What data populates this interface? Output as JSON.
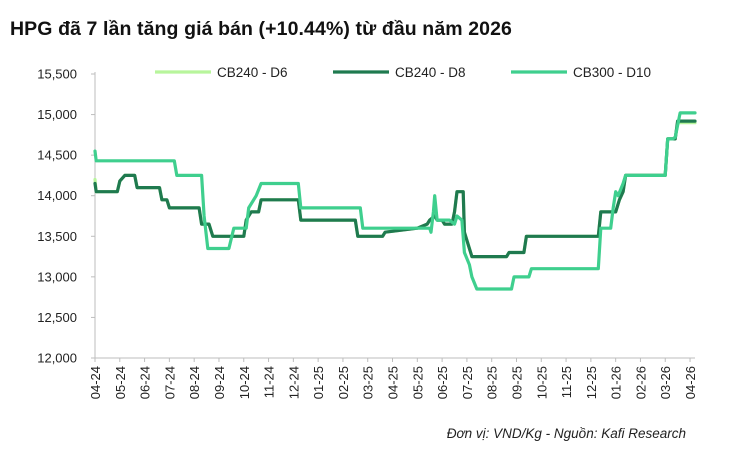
{
  "title": "HPG đã 7 lần tăng giá bán (+10.44%) từ đầu năm 2026",
  "footer": "Đơn vị: VND/Kg - Nguồn: Kafi Research",
  "colors": {
    "cb240_d6": "#b8f59c",
    "cb240_d8": "#1f7a4f",
    "cb300_d10": "#3fcf8e",
    "axis": "#bdbdbd",
    "text": "#222222"
  },
  "chart_data": {
    "type": "line",
    "title": "HPG đã 7 lần tăng giá bán (+10.44%) từ đầu năm 2026",
    "xlabel": "",
    "ylabel": "",
    "x_tick_labels": [
      "04-24",
      "05-24",
      "06-24",
      "07-24",
      "08-24",
      "09-24",
      "10-24",
      "11-24",
      "12-24",
      "01-25",
      "02-25",
      "03-25",
      "04-25",
      "05-25",
      "06-25",
      "07-25",
      "08-25",
      "09-25",
      "10-25",
      "11-25",
      "12-25",
      "01-26",
      "02-26",
      "03-26",
      "04-26"
    ],
    "y_tick_labels": [
      "12,000",
      "12,500",
      "13,000",
      "13,500",
      "14,000",
      "14,500",
      "15,000",
      "15,500"
    ],
    "ylim": [
      12000,
      15500
    ],
    "xlim": [
      0,
      24.2
    ],
    "grid": false,
    "legend_position": "top",
    "series": [
      {
        "name": "CB240 - D6",
        "color": "#b8f59c",
        "points": [
          [
            0.0,
            14200
          ],
          [
            0.05,
            14050
          ],
          [
            0.9,
            14050
          ],
          [
            1.0,
            14180
          ],
          [
            1.2,
            14250
          ],
          [
            1.6,
            14250
          ],
          [
            1.7,
            14100
          ],
          [
            2.6,
            14100
          ],
          [
            2.7,
            13950
          ],
          [
            2.9,
            13950
          ],
          [
            3.0,
            13850
          ],
          [
            4.2,
            13850
          ],
          [
            4.3,
            13650
          ],
          [
            4.6,
            13650
          ],
          [
            4.75,
            13500
          ],
          [
            6.0,
            13500
          ],
          [
            6.1,
            13700
          ],
          [
            6.3,
            13800
          ],
          [
            6.6,
            13800
          ],
          [
            6.7,
            13950
          ],
          [
            8.2,
            13950
          ],
          [
            8.3,
            13700
          ],
          [
            10.5,
            13700
          ],
          [
            10.6,
            13500
          ],
          [
            11.6,
            13500
          ],
          [
            11.7,
            13550
          ],
          [
            13.0,
            13600
          ],
          [
            13.4,
            13650
          ],
          [
            13.5,
            13700
          ],
          [
            13.7,
            13750
          ],
          [
            13.8,
            13700
          ],
          [
            14.0,
            13700
          ],
          [
            14.1,
            13650
          ],
          [
            14.4,
            13650
          ],
          [
            14.5,
            13800
          ],
          [
            14.6,
            14050
          ],
          [
            14.85,
            14050
          ],
          [
            14.9,
            13550
          ],
          [
            15.1,
            13350
          ],
          [
            15.2,
            13250
          ],
          [
            16.6,
            13250
          ],
          [
            16.7,
            13300
          ],
          [
            17.3,
            13300
          ],
          [
            17.4,
            13500
          ],
          [
            20.3,
            13500
          ],
          [
            20.4,
            13800
          ],
          [
            21.0,
            13800
          ],
          [
            21.15,
            13950
          ],
          [
            21.3,
            14050
          ],
          [
            21.4,
            14250
          ],
          [
            23.0,
            14250
          ],
          [
            23.1,
            14700
          ],
          [
            23.4,
            14700
          ],
          [
            23.5,
            14900
          ],
          [
            24.2,
            14900
          ]
        ]
      },
      {
        "name": "CB240 - D8",
        "color": "#1f7a4f",
        "points": [
          [
            0.0,
            14150
          ],
          [
            0.05,
            14050
          ],
          [
            0.9,
            14050
          ],
          [
            1.0,
            14180
          ],
          [
            1.2,
            14250
          ],
          [
            1.6,
            14250
          ],
          [
            1.7,
            14100
          ],
          [
            2.6,
            14100
          ],
          [
            2.7,
            13950
          ],
          [
            2.9,
            13950
          ],
          [
            3.0,
            13850
          ],
          [
            4.2,
            13850
          ],
          [
            4.3,
            13650
          ],
          [
            4.6,
            13650
          ],
          [
            4.75,
            13500
          ],
          [
            6.0,
            13500
          ],
          [
            6.1,
            13700
          ],
          [
            6.3,
            13800
          ],
          [
            6.6,
            13800
          ],
          [
            6.7,
            13950
          ],
          [
            8.2,
            13950
          ],
          [
            8.3,
            13700
          ],
          [
            10.5,
            13700
          ],
          [
            10.6,
            13500
          ],
          [
            11.6,
            13500
          ],
          [
            11.7,
            13550
          ],
          [
            13.0,
            13600
          ],
          [
            13.4,
            13650
          ],
          [
            13.5,
            13700
          ],
          [
            13.7,
            13750
          ],
          [
            13.8,
            13700
          ],
          [
            14.0,
            13700
          ],
          [
            14.1,
            13650
          ],
          [
            14.4,
            13650
          ],
          [
            14.5,
            13800
          ],
          [
            14.6,
            14050
          ],
          [
            14.85,
            14050
          ],
          [
            14.9,
            13550
          ],
          [
            15.1,
            13350
          ],
          [
            15.2,
            13250
          ],
          [
            16.6,
            13250
          ],
          [
            16.7,
            13300
          ],
          [
            17.3,
            13300
          ],
          [
            17.4,
            13500
          ],
          [
            20.3,
            13500
          ],
          [
            20.4,
            13800
          ],
          [
            21.0,
            13800
          ],
          [
            21.15,
            13950
          ],
          [
            21.3,
            14050
          ],
          [
            21.4,
            14250
          ],
          [
            23.0,
            14250
          ],
          [
            23.1,
            14700
          ],
          [
            23.4,
            14700
          ],
          [
            23.5,
            14920
          ],
          [
            24.2,
            14920
          ]
        ]
      },
      {
        "name": "CB300 - D10",
        "color": "#3fcf8e",
        "points": [
          [
            0.0,
            14550
          ],
          [
            0.05,
            14430
          ],
          [
            3.2,
            14430
          ],
          [
            3.3,
            14250
          ],
          [
            4.3,
            14250
          ],
          [
            4.4,
            13750
          ],
          [
            4.55,
            13350
          ],
          [
            5.4,
            13350
          ],
          [
            5.6,
            13600
          ],
          [
            6.1,
            13600
          ],
          [
            6.2,
            13850
          ],
          [
            6.5,
            14000
          ],
          [
            6.7,
            14150
          ],
          [
            8.2,
            14150
          ],
          [
            8.3,
            13850
          ],
          [
            10.7,
            13850
          ],
          [
            10.8,
            13600
          ],
          [
            13.0,
            13600
          ],
          [
            13.5,
            13600
          ],
          [
            13.55,
            13550
          ],
          [
            13.65,
            13800
          ],
          [
            13.7,
            14000
          ],
          [
            13.8,
            13700
          ],
          [
            14.3,
            13700
          ],
          [
            14.5,
            13650
          ],
          [
            14.6,
            13750
          ],
          [
            14.8,
            13700
          ],
          [
            14.9,
            13300
          ],
          [
            15.1,
            13150
          ],
          [
            15.2,
            13000
          ],
          [
            15.4,
            12850
          ],
          [
            16.8,
            12850
          ],
          [
            16.9,
            13000
          ],
          [
            17.5,
            13000
          ],
          [
            17.6,
            13100
          ],
          [
            20.3,
            13100
          ],
          [
            20.4,
            13600
          ],
          [
            20.8,
            13600
          ],
          [
            20.9,
            13850
          ],
          [
            21.0,
            14050
          ],
          [
            21.1,
            14000
          ],
          [
            21.3,
            14150
          ],
          [
            21.4,
            14250
          ],
          [
            23.0,
            14250
          ],
          [
            23.1,
            14700
          ],
          [
            23.3,
            14700
          ],
          [
            23.4,
            14720
          ],
          [
            23.6,
            15020
          ],
          [
            24.2,
            15020
          ]
        ]
      }
    ]
  }
}
